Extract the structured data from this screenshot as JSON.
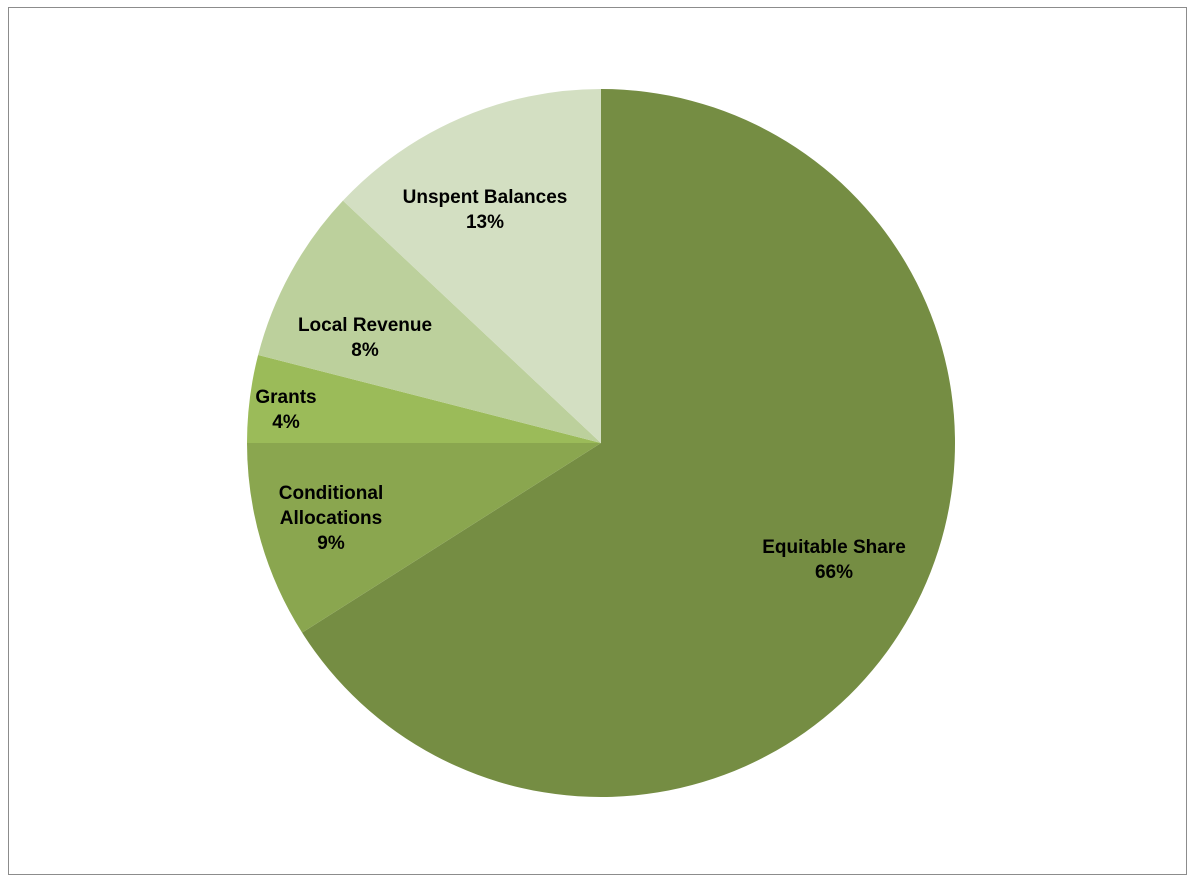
{
  "chart_data": {
    "type": "pie",
    "title": "",
    "series": [
      {
        "values": [
          66,
          9,
          4,
          8,
          13
        ]
      }
    ],
    "categories": [
      "Equitable Share",
      "Conditional Allocations",
      "Grants",
      "Local Revenue",
      "Unspent Balances"
    ],
    "slices": [
      {
        "label": "Equitable Share",
        "value": 66,
        "display": "66%",
        "color": "#758d43"
      },
      {
        "label": "Conditional Allocations",
        "value": 9,
        "display": "9%",
        "color": "#8aa64f"
      },
      {
        "label": "Grants",
        "value": 4,
        "display": "4%",
        "color": "#9bbb59"
      },
      {
        "label": "Local Revenue",
        "value": 8,
        "display": "8%",
        "color": "#bcd09c"
      },
      {
        "label": "Unspent Balances",
        "value": 13,
        "display": "13%",
        "color": "#d3dfc2"
      }
    ],
    "start_angle": "12 o'clock",
    "direction": "clockwise",
    "legend": "none",
    "data_labels": "category name and percentage inside slices"
  }
}
